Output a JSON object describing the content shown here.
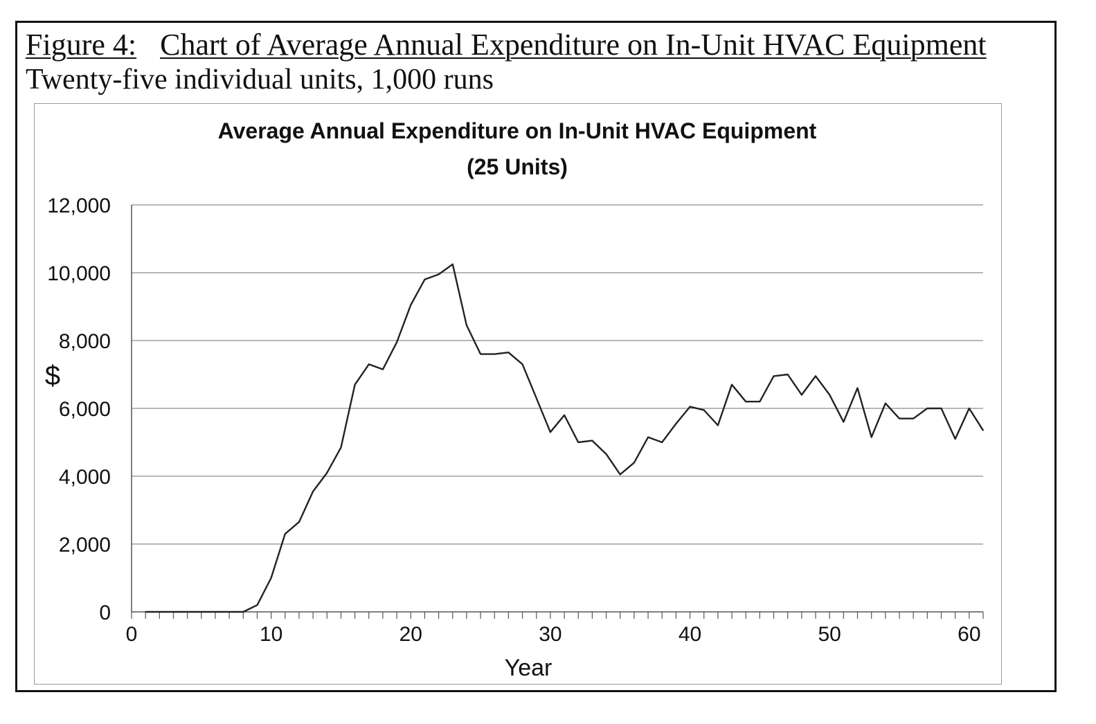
{
  "figure": {
    "label": "Figure 4:",
    "caption": "Chart of Average Annual Expenditure on In-Unit HVAC Equipment",
    "subcaption": "Twenty-five individual units, 1,000 runs"
  },
  "chart_data": {
    "type": "line",
    "title": "Average Annual Expenditure on In-Unit HVAC Equipment",
    "subtitle": "(25 Units)",
    "xlabel": "Year",
    "ylabel": "$",
    "xlim": [
      0,
      61
    ],
    "ylim": [
      0,
      12000
    ],
    "x_ticks": [
      0,
      10,
      20,
      30,
      40,
      50,
      60
    ],
    "y_ticks": [
      0,
      2000,
      4000,
      6000,
      8000,
      10000,
      12000
    ],
    "y_tick_labels": [
      "0",
      "2,000",
      "4,000",
      "6,000",
      "8,000",
      "10,000",
      "12,000"
    ],
    "grid": true,
    "legend": "none",
    "line_color": "#222222",
    "series": [
      {
        "x": [
          1,
          2,
          3,
          4,
          5,
          6,
          7,
          8,
          9,
          10,
          11,
          12,
          13,
          14,
          15,
          16,
          17,
          18,
          19,
          20,
          21,
          22,
          23,
          24,
          25,
          26,
          27,
          28,
          29,
          30,
          31,
          32,
          33,
          34,
          35,
          36,
          37,
          38,
          39,
          40,
          41,
          42,
          43,
          44,
          45,
          46,
          47,
          48,
          49,
          50,
          51,
          52,
          53,
          54,
          55,
          56,
          57,
          58,
          59,
          60,
          61
        ],
        "values": [
          0,
          0,
          0,
          0,
          0,
          0,
          0,
          0,
          200,
          1000,
          2300,
          2650,
          3550,
          4100,
          4850,
          6700,
          7300,
          7150,
          7950,
          9050,
          9800,
          9950,
          10250,
          8450,
          7600,
          7600,
          7650,
          7300,
          6300,
          5300,
          5800,
          5000,
          5050,
          4650,
          4050,
          4400,
          5150,
          5000,
          5550,
          6050,
          5950,
          5500,
          6700,
          6200,
          6200,
          6950,
          7000,
          6400,
          6950,
          6400,
          5600,
          6600,
          5150,
          6150,
          5700,
          5700,
          6000,
          6000,
          5100,
          6000,
          5350
        ]
      }
    ]
  }
}
